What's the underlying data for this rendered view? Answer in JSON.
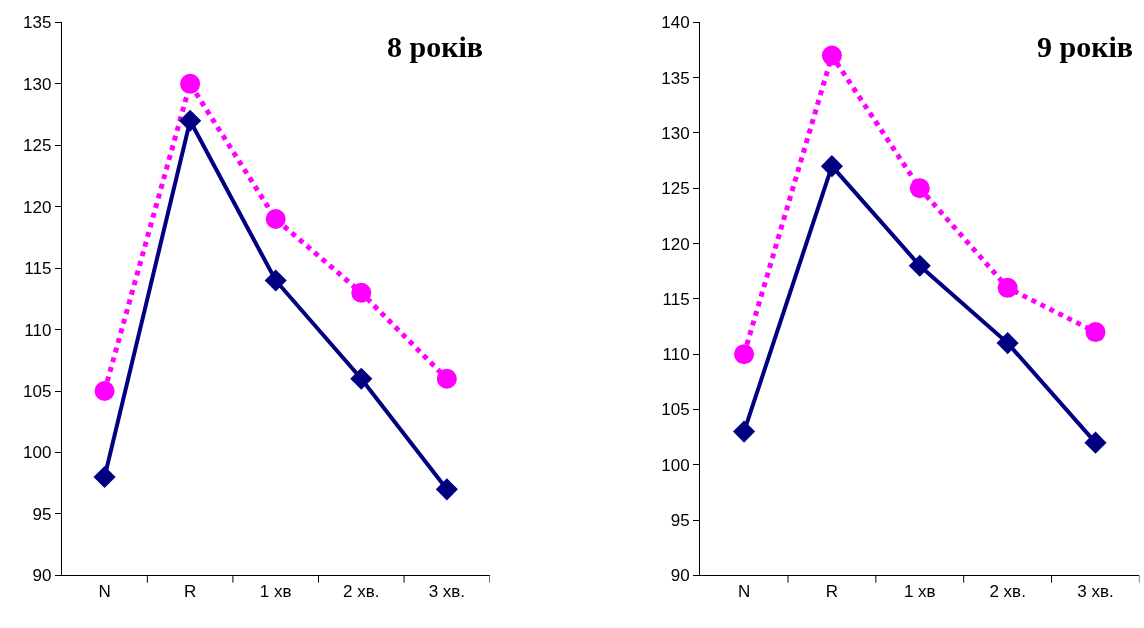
{
  "chart_data": [
    {
      "type": "line",
      "title": "8 років",
      "categories": [
        "N",
        "R",
        "1 хв",
        "2 хв.",
        "3 хв."
      ],
      "series": [
        {
          "color": "#ff00ff",
          "values": [
            105,
            130,
            119,
            113,
            106
          ],
          "marker": "circle",
          "line_style": "dotted"
        },
        {
          "color": "#000080",
          "values": [
            98,
            127,
            114,
            106,
            97
          ],
          "marker": "diamond",
          "line_style": "solid"
        }
      ],
      "ylim": [
        90,
        135
      ],
      "yticks": [
        90,
        95,
        100,
        105,
        110,
        115,
        120,
        125,
        130,
        135
      ]
    },
    {
      "type": "line",
      "title": "9 років",
      "categories": [
        "N",
        "R",
        "1 хв",
        "2 хв.",
        "3 хв."
      ],
      "series": [
        {
          "color": "#ff00ff",
          "values": [
            110,
            137,
            125,
            116,
            112
          ],
          "marker": "circle",
          "line_style": "dotted"
        },
        {
          "color": "#000080",
          "values": [
            103,
            127,
            118,
            111,
            102
          ],
          "marker": "diamond",
          "line_style": "solid"
        }
      ],
      "ylim": [
        90,
        140
      ],
      "yticks": [
        90,
        95,
        100,
        105,
        110,
        115,
        120,
        125,
        130,
        135,
        140
      ]
    }
  ]
}
